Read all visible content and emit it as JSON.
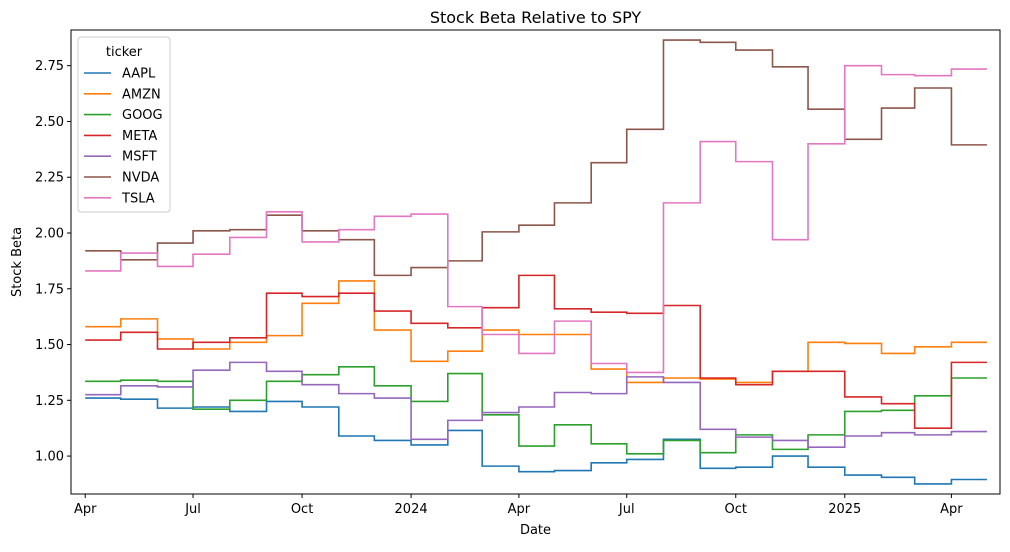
{
  "chart_data": {
    "type": "line",
    "title": "Stock Beta Relative to SPY",
    "xlabel": "Date",
    "ylabel": "Stock Beta",
    "xlim": [
      "2023-03-20",
      "2025-05-12"
    ],
    "ylim": [
      0.83,
      2.91
    ],
    "grid": false,
    "legend_position": "top-left",
    "legend_title": "ticker",
    "x_ticks": [
      {
        "date": "2023-04-01",
        "label": "Apr"
      },
      {
        "date": "2023-07-01",
        "label": "Jul"
      },
      {
        "date": "2023-10-01",
        "label": "Oct"
      },
      {
        "date": "2024-01-01",
        "label": "2024"
      },
      {
        "date": "2024-04-01",
        "label": "Apr"
      },
      {
        "date": "2024-07-01",
        "label": "Jul"
      },
      {
        "date": "2024-10-01",
        "label": "Oct"
      },
      {
        "date": "2025-01-01",
        "label": "2025"
      },
      {
        "date": "2025-04-01",
        "label": "Apr"
      }
    ],
    "y_ticks": [
      1.0,
      1.25,
      1.5,
      1.75,
      2.0,
      2.25,
      2.5,
      2.75
    ],
    "y_tick_labels": [
      "1.00",
      "1.25",
      "1.50",
      "1.75",
      "2.00",
      "2.25",
      "2.50",
      "2.75"
    ],
    "series": [
      {
        "name": "AAPL",
        "color": "#1f77b4",
        "x": [
          "2023-04-01",
          "2023-05-01",
          "2023-06-01",
          "2023-07-01",
          "2023-08-01",
          "2023-09-01",
          "2023-10-01",
          "2023-11-01",
          "2023-12-01",
          "2024-01-01",
          "2024-02-01",
          "2024-03-01",
          "2024-04-01",
          "2024-05-01",
          "2024-06-01",
          "2024-07-01",
          "2024-08-01",
          "2024-09-01",
          "2024-10-01",
          "2024-11-01",
          "2024-12-01",
          "2025-01-01",
          "2025-02-01",
          "2025-03-01",
          "2025-04-01",
          "2025-05-01"
        ],
        "y": [
          1.26,
          1.255,
          1.215,
          1.22,
          1.2,
          1.245,
          1.22,
          1.09,
          1.07,
          1.05,
          1.115,
          0.955,
          0.93,
          0.935,
          0.97,
          0.985,
          1.075,
          0.945,
          0.95,
          1.0,
          0.95,
          0.915,
          0.905,
          0.875,
          0.895,
          0.895
        ]
      },
      {
        "name": "AMZN",
        "color": "#ff7f0e",
        "x": [
          "2023-04-01",
          "2023-05-01",
          "2023-06-01",
          "2023-07-01",
          "2023-08-01",
          "2023-09-01",
          "2023-10-01",
          "2023-11-01",
          "2023-12-01",
          "2024-01-01",
          "2024-02-01",
          "2024-03-01",
          "2024-04-01",
          "2024-05-01",
          "2024-06-01",
          "2024-07-01",
          "2024-08-01",
          "2024-09-01",
          "2024-10-01",
          "2024-11-01",
          "2024-12-01",
          "2025-01-01",
          "2025-02-01",
          "2025-03-01",
          "2025-04-01",
          "2025-05-01"
        ],
        "y": [
          1.58,
          1.615,
          1.525,
          1.48,
          1.51,
          1.54,
          1.685,
          1.785,
          1.565,
          1.425,
          1.47,
          1.565,
          1.545,
          1.545,
          1.39,
          1.33,
          1.35,
          1.345,
          1.33,
          1.38,
          1.51,
          1.505,
          1.46,
          1.49,
          1.51,
          1.51
        ]
      },
      {
        "name": "GOOG",
        "color": "#2ca02c",
        "x": [
          "2023-04-01",
          "2023-05-01",
          "2023-06-01",
          "2023-07-01",
          "2023-08-01",
          "2023-09-01",
          "2023-10-01",
          "2023-11-01",
          "2023-12-01",
          "2024-01-01",
          "2024-02-01",
          "2024-03-01",
          "2024-04-01",
          "2024-05-01",
          "2024-06-01",
          "2024-07-01",
          "2024-08-01",
          "2024-09-01",
          "2024-10-01",
          "2024-11-01",
          "2024-12-01",
          "2025-01-01",
          "2025-02-01",
          "2025-03-01",
          "2025-04-01",
          "2025-05-01"
        ],
        "y": [
          1.335,
          1.34,
          1.335,
          1.21,
          1.25,
          1.335,
          1.365,
          1.4,
          1.315,
          1.245,
          1.37,
          1.185,
          1.045,
          1.14,
          1.055,
          1.01,
          1.07,
          1.015,
          1.095,
          1.03,
          1.095,
          1.2,
          1.205,
          1.27,
          1.35,
          1.35
        ]
      },
      {
        "name": "META",
        "color": "#d62728",
        "x": [
          "2023-04-01",
          "2023-05-01",
          "2023-06-01",
          "2023-07-01",
          "2023-08-01",
          "2023-09-01",
          "2023-10-01",
          "2023-11-01",
          "2023-12-01",
          "2024-01-01",
          "2024-02-01",
          "2024-03-01",
          "2024-04-01",
          "2024-05-01",
          "2024-06-01",
          "2024-07-01",
          "2024-08-01",
          "2024-09-01",
          "2024-10-01",
          "2024-11-01",
          "2024-12-01",
          "2025-01-01",
          "2025-02-01",
          "2025-03-01",
          "2025-04-01",
          "2025-05-01"
        ],
        "y": [
          1.52,
          1.555,
          1.48,
          1.51,
          1.53,
          1.73,
          1.715,
          1.73,
          1.65,
          1.595,
          1.575,
          1.665,
          1.81,
          1.66,
          1.645,
          1.64,
          1.675,
          1.35,
          1.32,
          1.38,
          1.38,
          1.265,
          1.235,
          1.125,
          1.42,
          1.42
        ]
      },
      {
        "name": "MSFT",
        "color": "#9467bd",
        "x": [
          "2023-04-01",
          "2023-05-01",
          "2023-06-01",
          "2023-07-01",
          "2023-08-01",
          "2023-09-01",
          "2023-10-01",
          "2023-11-01",
          "2023-12-01",
          "2024-01-01",
          "2024-02-01",
          "2024-03-01",
          "2024-04-01",
          "2024-05-01",
          "2024-06-01",
          "2024-07-01",
          "2024-08-01",
          "2024-09-01",
          "2024-10-01",
          "2024-11-01",
          "2024-12-01",
          "2025-01-01",
          "2025-02-01",
          "2025-03-01",
          "2025-04-01",
          "2025-05-01"
        ],
        "y": [
          1.275,
          1.315,
          1.31,
          1.385,
          1.42,
          1.38,
          1.32,
          1.28,
          1.26,
          1.075,
          1.16,
          1.195,
          1.22,
          1.285,
          1.28,
          1.355,
          1.33,
          1.12,
          1.085,
          1.07,
          1.04,
          1.09,
          1.105,
          1.095,
          1.11,
          1.11
        ]
      },
      {
        "name": "NVDA",
        "color": "#8c564b",
        "x": [
          "2023-04-01",
          "2023-05-01",
          "2023-06-01",
          "2023-07-01",
          "2023-08-01",
          "2023-09-01",
          "2023-10-01",
          "2023-11-01",
          "2023-12-01",
          "2024-01-01",
          "2024-02-01",
          "2024-03-01",
          "2024-04-01",
          "2024-05-01",
          "2024-06-01",
          "2024-07-01",
          "2024-08-01",
          "2024-09-01",
          "2024-10-01",
          "2024-11-01",
          "2024-12-01",
          "2025-01-01",
          "2025-02-01",
          "2025-03-01",
          "2025-04-01",
          "2025-05-01"
        ],
        "y": [
          1.92,
          1.88,
          1.955,
          2.01,
          2.015,
          2.08,
          2.01,
          1.97,
          1.81,
          1.845,
          1.875,
          2.005,
          2.035,
          2.135,
          2.315,
          2.465,
          2.865,
          2.855,
          2.82,
          2.745,
          2.555,
          2.42,
          2.56,
          2.65,
          2.395,
          2.395
        ]
      },
      {
        "name": "TSLA",
        "color": "#e377c2",
        "x": [
          "2023-04-01",
          "2023-05-01",
          "2023-06-01",
          "2023-07-01",
          "2023-08-01",
          "2023-09-01",
          "2023-10-01",
          "2023-11-01",
          "2023-12-01",
          "2024-01-01",
          "2024-02-01",
          "2024-03-01",
          "2024-04-01",
          "2024-05-01",
          "2024-06-01",
          "2024-07-01",
          "2024-08-01",
          "2024-09-01",
          "2024-10-01",
          "2024-11-01",
          "2024-12-01",
          "2025-01-01",
          "2025-02-01",
          "2025-03-01",
          "2025-04-01",
          "2025-05-01"
        ],
        "y": [
          1.83,
          1.91,
          1.85,
          1.905,
          1.98,
          2.095,
          1.96,
          2.015,
          2.075,
          2.085,
          1.67,
          1.545,
          1.46,
          1.605,
          1.415,
          1.375,
          2.135,
          2.41,
          2.32,
          1.97,
          2.4,
          2.75,
          2.71,
          2.705,
          2.735,
          2.735
        ]
      }
    ]
  }
}
